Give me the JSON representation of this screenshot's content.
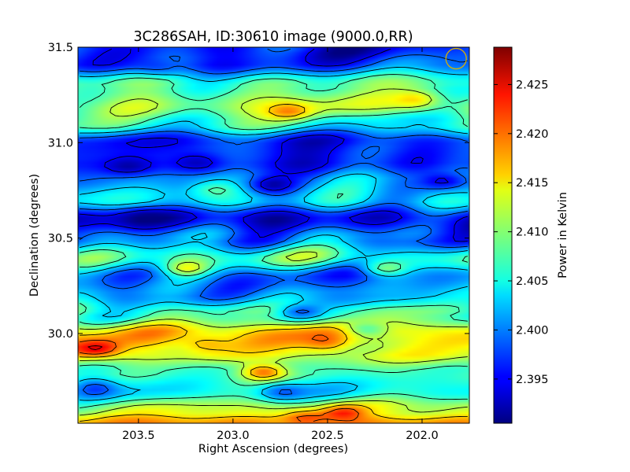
{
  "chart_data": {
    "type": "heatmap",
    "title": "3C286SAH, ID:30610 image (9000.0,RR)",
    "xlabel": "Right Ascension (degrees)",
    "ylabel": "Declination (degrees)",
    "xlim": [
      203.82,
      201.75
    ],
    "ylim": [
      29.53,
      31.5
    ],
    "x_ticks": [
      203.5,
      203.0,
      202.5,
      202.0
    ],
    "x_tick_labels": [
      "203.5",
      "203.0",
      "202.5",
      "202.0"
    ],
    "y_ticks": [
      30.0,
      30.5,
      31.0,
      31.5
    ],
    "y_tick_labels": [
      "30.0",
      "30.5",
      "31.0",
      "31.5"
    ],
    "colorbar": {
      "label": "Power in Kelvin",
      "range": [
        2.3905,
        2.4288
      ],
      "ticks": [
        2.395,
        2.4,
        2.405,
        2.41,
        2.415,
        2.42,
        2.425
      ],
      "tick_labels": [
        "2.395",
        "2.400",
        "2.405",
        "2.410",
        "2.415",
        "2.420",
        "2.425"
      ],
      "colormap": "jet"
    },
    "contours": {
      "color": "#000000",
      "levels": 8
    },
    "beam_marker": {
      "ra": 201.82,
      "dec": 31.44,
      "color": "#d8b000"
    },
    "dec_profile": [
      {
        "dec": 31.5,
        "value": 2.396
      },
      {
        "dec": 31.42,
        "value": 2.3975
      },
      {
        "dec": 31.3,
        "value": 2.408
      },
      {
        "dec": 31.2,
        "value": 2.411
      },
      {
        "dec": 31.1,
        "value": 2.406
      },
      {
        "dec": 31.0,
        "value": 2.396
      },
      {
        "dec": 30.9,
        "value": 2.3965
      },
      {
        "dec": 30.8,
        "value": 2.401
      },
      {
        "dec": 30.7,
        "value": 2.404
      },
      {
        "dec": 30.6,
        "value": 2.3935
      },
      {
        "dec": 30.5,
        "value": 2.4
      },
      {
        "dec": 30.4,
        "value": 2.407
      },
      {
        "dec": 30.3,
        "value": 2.3995
      },
      {
        "dec": 30.2,
        "value": 2.401
      },
      {
        "dec": 30.1,
        "value": 2.408
      },
      {
        "dec": 30.0,
        "value": 2.416
      },
      {
        "dec": 29.9,
        "value": 2.414
      },
      {
        "dec": 29.8,
        "value": 2.407
      },
      {
        "dec": 29.7,
        "value": 2.405
      },
      {
        "dec": 29.6,
        "value": 2.412
      },
      {
        "dec": 29.53,
        "value": 2.418
      }
    ],
    "hotspots": [
      {
        "ra": 203.72,
        "dec": 29.92,
        "value": 2.424
      },
      {
        "ra": 202.62,
        "dec": 29.55,
        "value": 2.423
      },
      {
        "ra": 202.42,
        "dec": 29.58,
        "value": 2.422
      },
      {
        "ra": 202.5,
        "dec": 29.95,
        "value": 2.42
      },
      {
        "ra": 202.84,
        "dec": 29.8,
        "value": 2.419
      },
      {
        "ra": 203.15,
        "dec": 29.95,
        "value": 2.419
      },
      {
        "ra": 202.02,
        "dec": 31.22,
        "value": 2.417
      },
      {
        "ra": 202.7,
        "dec": 31.17,
        "value": 2.4165
      },
      {
        "ra": 203.25,
        "dec": 30.35,
        "value": 2.412
      },
      {
        "ra": 202.2,
        "dec": 30.35,
        "value": 2.412
      },
      {
        "ra": 203.73,
        "dec": 29.72,
        "value": 2.399
      },
      {
        "ra": 202.75,
        "dec": 29.7,
        "value": 2.399
      },
      {
        "ra": 201.88,
        "dec": 30.8,
        "value": 2.393
      },
      {
        "ra": 203.55,
        "dec": 30.88,
        "value": 2.3925
      },
      {
        "ra": 203.18,
        "dec": 30.9,
        "value": 2.3925
      },
      {
        "ra": 202.8,
        "dec": 30.78,
        "value": 2.394
      },
      {
        "ra": 203.5,
        "dec": 30.6,
        "value": 2.392
      },
      {
        "ra": 202.65,
        "dec": 30.12,
        "value": 2.3995
      },
      {
        "ra": 203.4,
        "dec": 31.4,
        "value": 2.3945
      },
      {
        "ra": 202.3,
        "dec": 30.03,
        "value": 2.406
      },
      {
        "ra": 203.1,
        "dec": 30.75,
        "value": 2.407
      }
    ]
  }
}
